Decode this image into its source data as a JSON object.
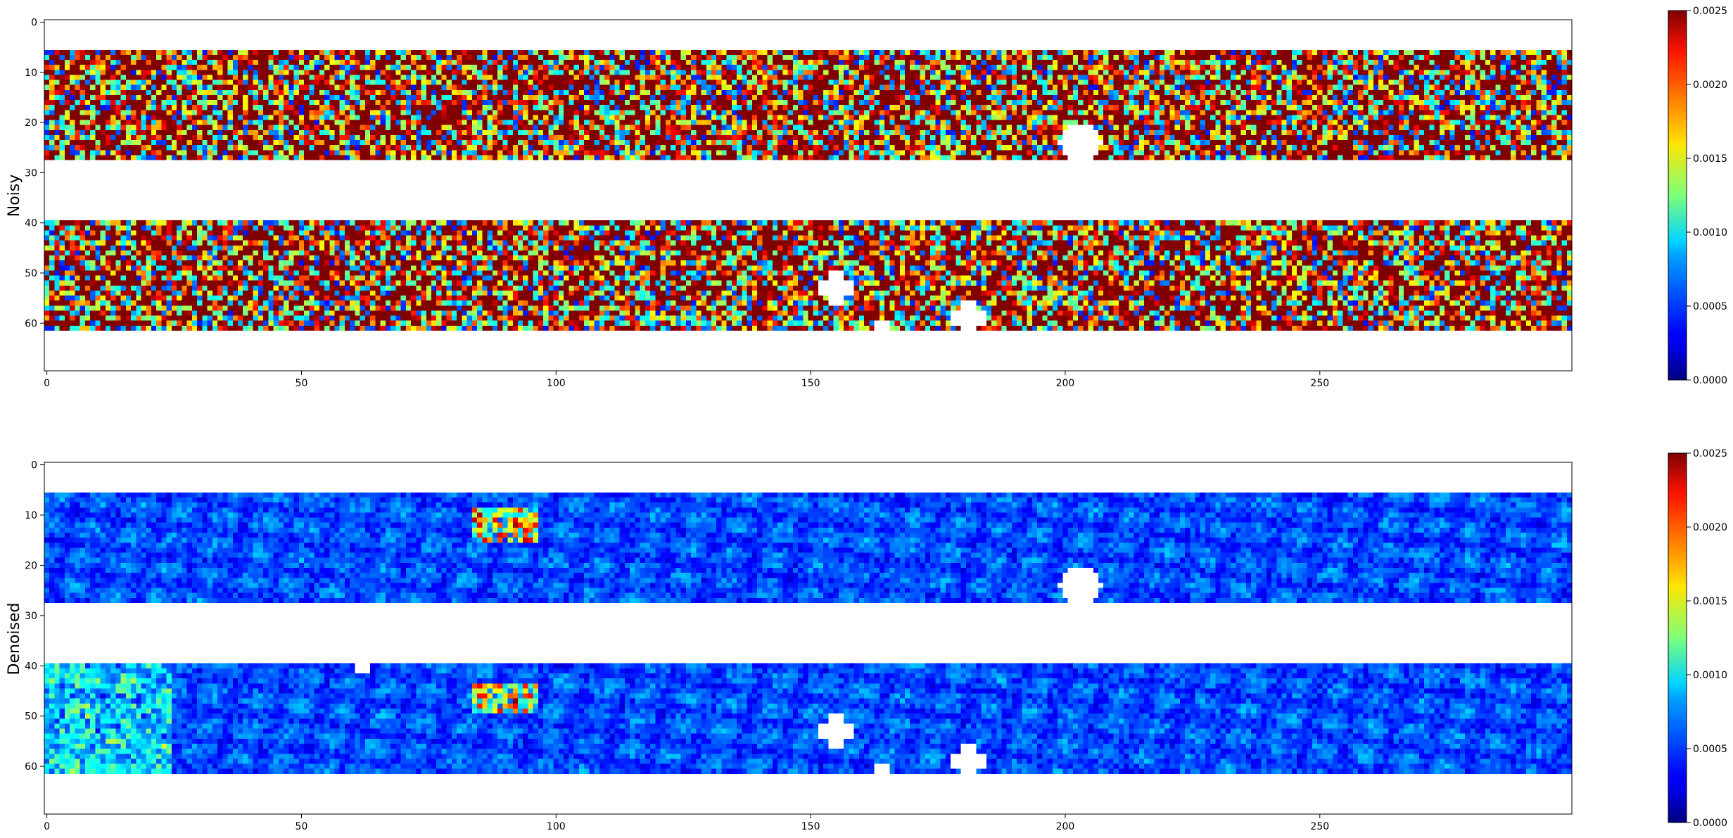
{
  "figure": {
    "background": "#ffffff"
  },
  "chart_data": [
    {
      "type": "heatmap",
      "ylabel": "Noisy",
      "x_ticks": [
        0,
        50,
        100,
        150,
        200,
        250
      ],
      "y_ticks": [
        0,
        10,
        20,
        30,
        40,
        50,
        60
      ],
      "xlim": [
        0,
        299
      ],
      "ylim": [
        69,
        0
      ],
      "grid_shape": [
        70,
        300
      ],
      "valid_row_bands": [
        [
          6,
          27
        ],
        [
          40,
          61
        ]
      ],
      "masked_regions": [
        {
          "shape": "blob",
          "row": 24,
          "col": 203
        },
        {
          "shape": "cross",
          "row": 53,
          "col": 155
        },
        {
          "shape": "cross",
          "row": 59,
          "col": 181
        },
        {
          "shape": "cell",
          "row": 61,
          "col": 164
        }
      ],
      "colormap": "jet",
      "clim": [
        0.0,
        0.0025
      ],
      "colorbar_ticks": [
        "0.0000",
        "0.0005",
        "0.0010",
        "0.0015",
        "0.0020",
        "0.0025"
      ],
      "value_summary": {
        "median": 0.0021,
        "spread": 0.0011,
        "description": "high-amplitude random noise, large fraction saturated at 0.0025"
      }
    },
    {
      "type": "heatmap",
      "ylabel": "Denoised",
      "x_ticks": [
        0,
        50,
        100,
        150,
        200,
        250
      ],
      "y_ticks": [
        0,
        10,
        20,
        30,
        40,
        50,
        60
      ],
      "xlim": [
        0,
        299
      ],
      "ylim": [
        69,
        0
      ],
      "grid_shape": [
        70,
        300
      ],
      "valid_row_bands": [
        [
          6,
          27
        ],
        [
          40,
          61
        ]
      ],
      "masked_regions": [
        {
          "shape": "blob",
          "row": 24,
          "col": 203
        },
        {
          "shape": "cross",
          "row": 53,
          "col": 155
        },
        {
          "shape": "cross",
          "row": 59,
          "col": 181
        },
        {
          "shape": "cell",
          "row": 61,
          "col": 164
        },
        {
          "shape": "cell",
          "row": 40,
          "col": 62
        }
      ],
      "colormap": "jet",
      "clim": [
        0.0,
        0.0025
      ],
      "colorbar_ticks": [
        "0.0000",
        "0.0005",
        "0.0010",
        "0.0015",
        "0.0020",
        "0.0025"
      ],
      "value_summary": {
        "median": 0.0002,
        "spread": 0.0004,
        "description": "mostly low values with streaky structures; local peaks near col 88-92 rows 10-14 and rows 45-48"
      }
    }
  ]
}
